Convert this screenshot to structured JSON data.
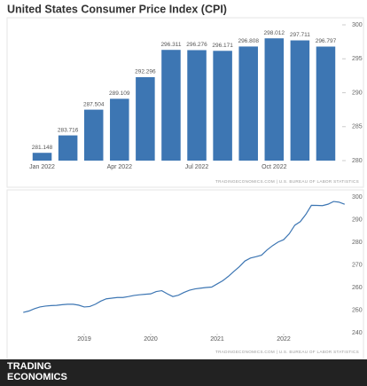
{
  "chart_data": [
    {
      "type": "bar",
      "title": "United States Consumer Price Index (CPI)",
      "categories": [
        "Jan 2022",
        null,
        null,
        "Apr 2022",
        null,
        null,
        "Jul 2022",
        null,
        null,
        "Oct 2022",
        null,
        null
      ],
      "values": [
        281.148,
        283.716,
        287.504,
        289.109,
        292.296,
        296.311,
        296.276,
        296.171,
        296.808,
        298.012,
        297.711,
        296.797
      ],
      "color": "#3d76b3",
      "ylim": [
        280,
        300
      ],
      "yticks": [
        280,
        285,
        290,
        295,
        300
      ],
      "grid": false,
      "source": "TRADINGECONOMICS.COM | U.S. BUREAU OF LABOR STATISTICS"
    },
    {
      "type": "line",
      "x": [
        2018.083,
        2018.167,
        2018.25,
        2018.333,
        2018.417,
        2018.5,
        2018.583,
        2018.667,
        2018.75,
        2018.833,
        2018.917,
        2019.0,
        2019.083,
        2019.167,
        2019.25,
        2019.333,
        2019.417,
        2019.5,
        2019.583,
        2019.667,
        2019.75,
        2019.833,
        2019.917,
        2020.0,
        2020.083,
        2020.167,
        2020.25,
        2020.333,
        2020.417,
        2020.5,
        2020.583,
        2020.667,
        2020.75,
        2020.833,
        2020.917,
        2021.0,
        2021.083,
        2021.167,
        2021.25,
        2021.333,
        2021.417,
        2021.5,
        2021.583,
        2021.667,
        2021.75,
        2021.833,
        2021.917,
        2022.0,
        2022.083,
        2022.167,
        2022.25,
        2022.333,
        2022.417,
        2022.5,
        2022.583,
        2022.667,
        2022.75,
        2022.833,
        2022.917
      ],
      "values": [
        249.0,
        249.6,
        250.6,
        251.4,
        251.8,
        252.0,
        252.1,
        252.4,
        252.6,
        252.6,
        252.2,
        251.4,
        251.6,
        252.6,
        254.0,
        255.0,
        255.3,
        255.6,
        255.6,
        256.0,
        256.5,
        256.8,
        257.0,
        257.2,
        258.2,
        258.6,
        257.2,
        256.0,
        256.6,
        257.8,
        258.8,
        259.4,
        259.7,
        260.0,
        260.2,
        261.6,
        263.0,
        264.9,
        267.1,
        269.2,
        271.7,
        273.0,
        273.6,
        274.3,
        276.6,
        278.5,
        280.1,
        281.148,
        283.716,
        287.504,
        289.109,
        292.296,
        296.311,
        296.276,
        296.171,
        296.808,
        298.012,
        297.711,
        296.797
      ],
      "color": "#3d76b3",
      "xlim": [
        2017.84,
        2023.0
      ],
      "xticks": [
        2019,
        2020,
        2021,
        2022
      ],
      "ylim": [
        240,
        300
      ],
      "yticks": [
        240,
        250,
        260,
        270,
        280,
        290,
        300
      ],
      "grid": false,
      "source": "TRADINGECONOMICS.COM | U.S. BUREAU OF LABOR STATISTICS"
    }
  ],
  "footer_logo": {
    "line1": "TRADING",
    "line2": "ECONOMICS"
  }
}
